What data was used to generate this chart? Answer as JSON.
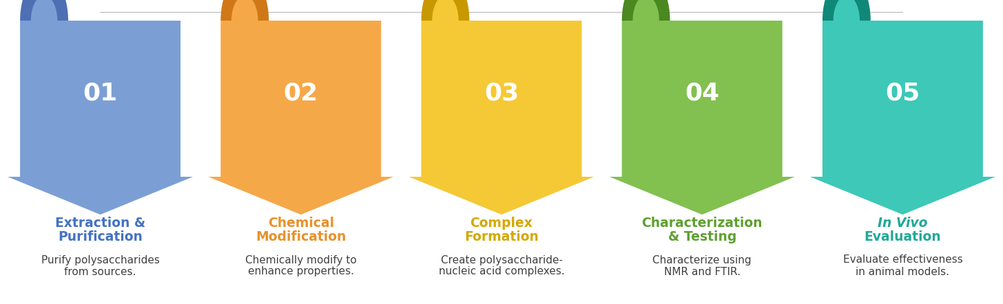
{
  "steps": [
    {
      "number": "01",
      "title_lines": [
        "Extraction &",
        "Purification"
      ],
      "title_italic": [
        false,
        false
      ],
      "description": "Purify polysaccharides\nfrom sources.",
      "arrow_color_light": "#8FAEDD",
      "arrow_color_main": "#7B9FD4",
      "arrow_color_dark": "#5B7FC4",
      "curl_color": "#4F6FB5",
      "title_color": "#4472C4",
      "text_color": "#404040"
    },
    {
      "number": "02",
      "title_lines": [
        "Chemical",
        "Modification"
      ],
      "title_italic": [
        false,
        false
      ],
      "description": "Chemically modify to\nenhance properties.",
      "arrow_color_light": "#F8BC70",
      "arrow_color_main": "#F5A848",
      "arrow_color_dark": "#E8912A",
      "curl_color": "#D07818",
      "title_color": "#E8912A",
      "text_color": "#404040"
    },
    {
      "number": "03",
      "title_lines": [
        "Complex",
        "Formation"
      ],
      "title_italic": [
        false,
        false
      ],
      "description": "Create polysaccharide-\nnucleic acid complexes.",
      "arrow_color_light": "#FAD855",
      "arrow_color_main": "#F5C835",
      "arrow_color_dark": "#E0AD10",
      "curl_color": "#C89800",
      "title_color": "#D4A800",
      "text_color": "#404040"
    },
    {
      "number": "04",
      "title_lines": [
        "Characterization",
        "& Testing"
      ],
      "title_italic": [
        false,
        false
      ],
      "description": "Characterize using\nNMR and FTIR.",
      "arrow_color_light": "#9DD468",
      "arrow_color_main": "#82C050",
      "arrow_color_dark": "#5EA030",
      "curl_color": "#4A8820",
      "title_color": "#5EA030",
      "text_color": "#404040"
    },
    {
      "number": "05",
      "title_lines": [
        "In Vivo",
        "Evaluation"
      ],
      "title_italic": [
        true,
        false
      ],
      "description": "Evaluate effectiveness\nin animal models.",
      "arrow_color_light": "#5DD5C8",
      "arrow_color_main": "#3DC8B8",
      "arrow_color_dark": "#20A898",
      "curl_color": "#108878",
      "title_color": "#20A898",
      "text_color": "#404040"
    }
  ],
  "background_color": "#FFFFFF",
  "connector_color": "#CCCCCC",
  "figsize": [
    14.56,
    4.42
  ],
  "dpi": 100
}
